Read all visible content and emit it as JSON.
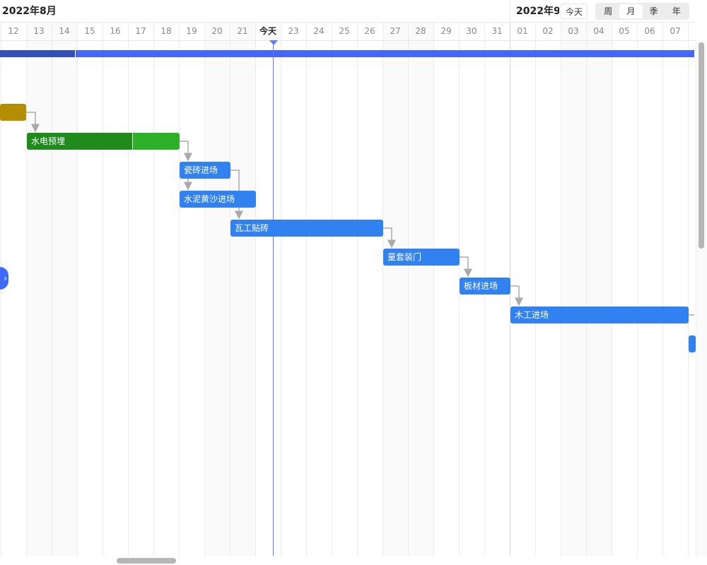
{
  "header": {
    "month_left": "2022年8月",
    "month_right": "2022年9",
    "today_button": "今天",
    "views": [
      "周",
      "月",
      "季",
      "年"
    ],
    "selected_view": "月"
  },
  "days": [
    "12",
    "13",
    "14",
    "15",
    "16",
    "17",
    "18",
    "19",
    "20",
    "21",
    "今天",
    "23",
    "24",
    "25",
    "26",
    "27",
    "28",
    "29",
    "30",
    "31",
    "01",
    "02",
    "03",
    "04",
    "05",
    "06",
    "07"
  ],
  "weekend_days": [
    "13",
    "14",
    "20",
    "21",
    "27",
    "28",
    "03",
    "04"
  ],
  "today_label": "今天",
  "tasks": [
    {
      "name": "",
      "color": "#b38f00"
    },
    {
      "name": "水电预埋",
      "color": "#2cb128",
      "done_color": "#208a1c"
    },
    {
      "name": "瓷砖进场",
      "color": "#3182f0"
    },
    {
      "name": "水泥黄沙进场",
      "color": "#3182f0"
    },
    {
      "name": "瓦工贴砖",
      "color": "#3182f0"
    },
    {
      "name": "量套装门",
      "color": "#3182f0"
    },
    {
      "name": "板材进场",
      "color": "#3182f0"
    },
    {
      "name": "木工进场",
      "color": "#3182f0"
    }
  ],
  "colors": {
    "project_bar": "#4466ff",
    "project_done": "#3350b8",
    "today_line": "#5b7cff",
    "connector": "#aaaaaa"
  }
}
